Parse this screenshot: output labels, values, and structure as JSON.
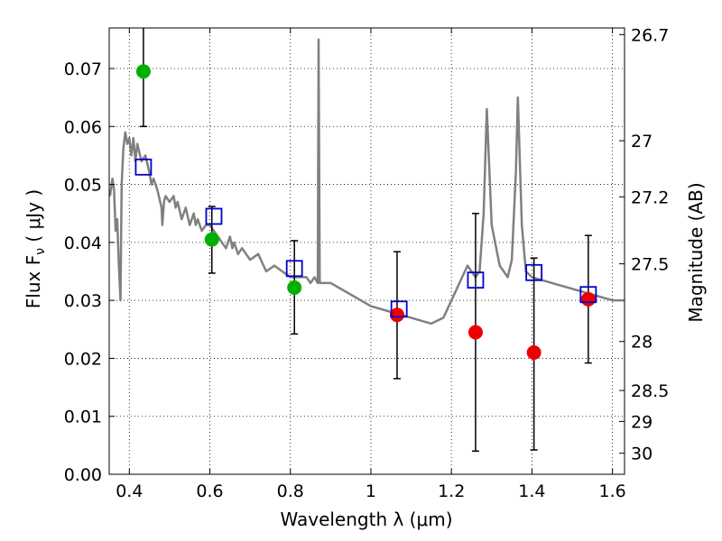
{
  "chart_data": {
    "type": "scatter",
    "xlabel": "Wavelength  λ (μm)",
    "ylabel": "Flux  F_ν  ( μJy )",
    "ylabel_right": "Magnitude (AB)",
    "xlim": [
      0.35,
      1.63
    ],
    "ylim": [
      0.0,
      0.077
    ],
    "grid": true,
    "x_ticks": [
      {
        "v": 0.4,
        "label": "0.4"
      },
      {
        "v": 0.6,
        "label": "0.6"
      },
      {
        "v": 0.8,
        "label": "0.8"
      },
      {
        "v": 1.0,
        "label": "1"
      },
      {
        "v": 1.2,
        "label": "1.2"
      },
      {
        "v": 1.4,
        "label": "1.4"
      },
      {
        "v": 1.6,
        "label": "1.6"
      }
    ],
    "y_ticks": [
      {
        "v": 0.0,
        "label": "0.00"
      },
      {
        "v": 0.01,
        "label": "0.01"
      },
      {
        "v": 0.02,
        "label": "0.02"
      },
      {
        "v": 0.03,
        "label": "0.03"
      },
      {
        "v": 0.04,
        "label": "0.04"
      },
      {
        "v": 0.05,
        "label": "0.05"
      },
      {
        "v": 0.06,
        "label": "0.06"
      },
      {
        "v": 0.07,
        "label": "0.07"
      }
    ],
    "right_ticks": [
      {
        "mag": 26.7,
        "label": "26.7"
      },
      {
        "mag": 27,
        "label": "27"
      },
      {
        "mag": 27.2,
        "label": "27.2"
      },
      {
        "mag": 27.5,
        "label": "27.5"
      },
      {
        "mag": 28,
        "label": "28"
      },
      {
        "mag": 28.5,
        "label": "28.5"
      },
      {
        "mag": 29,
        "label": "29"
      },
      {
        "mag": 30,
        "label": "30"
      }
    ],
    "model_spectrum": {
      "color": "#808080",
      "x": [
        0.352,
        0.358,
        0.362,
        0.366,
        0.37,
        0.374,
        0.378,
        0.381,
        0.385,
        0.39,
        0.395,
        0.4,
        0.405,
        0.41,
        0.415,
        0.42,
        0.43,
        0.44,
        0.45,
        0.455,
        0.46,
        0.47,
        0.48,
        0.482,
        0.486,
        0.49,
        0.5,
        0.51,
        0.515,
        0.52,
        0.53,
        0.54,
        0.55,
        0.56,
        0.565,
        0.57,
        0.58,
        0.59,
        0.6,
        0.61,
        0.62,
        0.63,
        0.64,
        0.65,
        0.656,
        0.66,
        0.67,
        0.68,
        0.7,
        0.72,
        0.74,
        0.76,
        0.78,
        0.8,
        0.82,
        0.84,
        0.85,
        0.86,
        0.868,
        0.87,
        0.873,
        0.875,
        0.878,
        0.88,
        0.9,
        0.95,
        1.0,
        1.05,
        1.1,
        1.15,
        1.18,
        1.2,
        1.22,
        1.24,
        1.26,
        1.27,
        1.28,
        1.288,
        1.3,
        1.32,
        1.34,
        1.35,
        1.36,
        1.365,
        1.375,
        1.385,
        1.4,
        1.45,
        1.5,
        1.55,
        1.6,
        1.63
      ],
      "y": [
        0.048,
        0.051,
        0.049,
        0.042,
        0.044,
        0.036,
        0.03,
        0.05,
        0.056,
        0.059,
        0.057,
        0.058,
        0.055,
        0.058,
        0.054,
        0.057,
        0.054,
        0.055,
        0.052,
        0.05,
        0.051,
        0.049,
        0.046,
        0.043,
        0.047,
        0.048,
        0.047,
        0.048,
        0.046,
        0.047,
        0.044,
        0.046,
        0.043,
        0.045,
        0.043,
        0.044,
        0.042,
        0.043,
        0.043,
        0.042,
        0.041,
        0.04,
        0.039,
        0.041,
        0.039,
        0.04,
        0.038,
        0.039,
        0.037,
        0.038,
        0.035,
        0.036,
        0.035,
        0.034,
        0.034,
        0.034,
        0.033,
        0.034,
        0.033,
        0.075,
        0.033,
        0.033,
        0.033,
        0.033,
        0.033,
        0.031,
        0.029,
        0.028,
        0.027,
        0.026,
        0.027,
        0.03,
        0.033,
        0.036,
        0.034,
        0.035,
        0.045,
        0.063,
        0.043,
        0.036,
        0.034,
        0.037,
        0.052,
        0.065,
        0.043,
        0.035,
        0.034,
        0.033,
        0.032,
        0.031,
        0.03,
        0.03
      ]
    },
    "series": [
      {
        "marker": "circle",
        "color": "#00b000",
        "x": [
          0.435,
          0.605,
          0.81
        ],
        "y": [
          0.0695,
          0.0405,
          0.0322
        ],
        "err_low": [
          0.06,
          0.0347,
          0.0242
        ],
        "err_high": [
          0.0775,
          0.0462,
          0.0403
        ]
      },
      {
        "marker": "circle",
        "color": "#ee0000",
        "x": [
          1.065,
          1.26,
          1.405,
          1.54
        ],
        "y": [
          0.0275,
          0.0245,
          0.021,
          0.0302
        ],
        "err_low": [
          0.0165,
          0.004,
          0.0042,
          0.0192
        ],
        "err_high": [
          0.0384,
          0.045,
          0.0373,
          0.0412
        ]
      },
      {
        "marker": "open-square",
        "color": "#0000cc",
        "x": [
          0.435,
          0.61,
          0.81,
          1.07,
          1.26,
          1.405,
          1.54
        ],
        "y": [
          0.053,
          0.0445,
          0.0355,
          0.0285,
          0.0335,
          0.0348,
          0.031
        ]
      }
    ]
  }
}
